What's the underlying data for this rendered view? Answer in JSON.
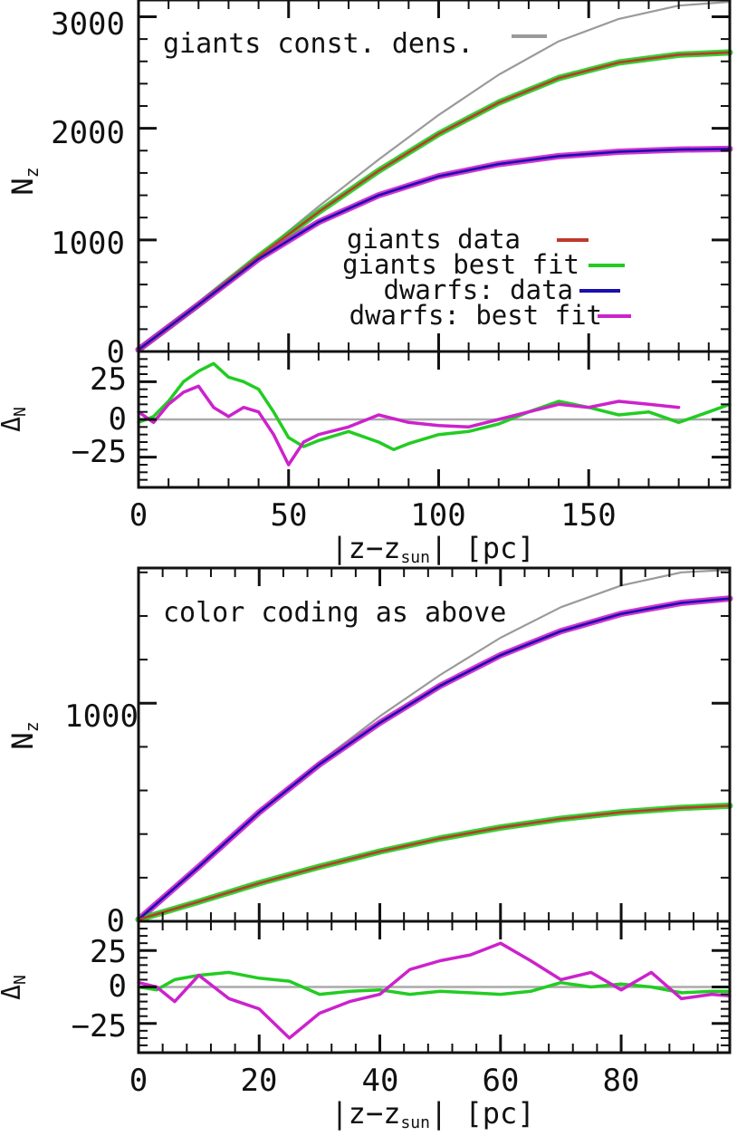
{
  "chart_data": [
    {
      "type": "line",
      "panel": "top",
      "xlim": [
        0,
        197
      ],
      "ylim": [
        0,
        3150
      ],
      "xticks": [
        0,
        50,
        100,
        150
      ],
      "yticks": [
        0,
        1000,
        2000,
        3000
      ],
      "xtick_labels": [
        "0",
        "50",
        "100",
        "150"
      ],
      "ytick_labels": [
        "0",
        "1000",
        "2000",
        "3000"
      ],
      "xlabel": "|z−z",
      "xlabel_sub": "sun",
      "xlabel_tail": "| [pc]",
      "ylabel": "N",
      "ylabel_sub": "z",
      "annotation": "giants const. dens.",
      "legend": [
        {
          "label": "giants data",
          "color": "#c0392b"
        },
        {
          "label": "giants best fit",
          "color": "#22cc22"
        },
        {
          "label": "dwarfs: data",
          "color": "#1a10b0"
        },
        {
          "label": "dwarfs: best fit",
          "color": "#cc22cc"
        }
      ],
      "legend_position": "center-right",
      "series": [
        {
          "name": "giants const. dens.",
          "color": "#9a9a9a",
          "x": [
            0,
            20,
            40,
            60,
            80,
            100,
            120,
            140,
            160,
            180,
            197
          ],
          "y": [
            0,
            420,
            860,
            1300,
            1720,
            2120,
            2480,
            2780,
            2980,
            3100,
            3140
          ]
        },
        {
          "name": "giants data",
          "color": "#c0392b",
          "x": [
            0,
            20,
            40,
            60,
            80,
            100,
            120,
            140,
            160,
            180,
            197
          ],
          "y": [
            0,
            420,
            850,
            1250,
            1620,
            1950,
            2230,
            2450,
            2590,
            2660,
            2680
          ]
        },
        {
          "name": "giants best fit",
          "color": "#22cc22",
          "x": [
            0,
            20,
            40,
            60,
            80,
            100,
            120,
            140,
            160,
            180,
            197
          ],
          "y": [
            0,
            420,
            850,
            1250,
            1620,
            1950,
            2230,
            2450,
            2590,
            2660,
            2680
          ]
        },
        {
          "name": "dwarfs: data",
          "color": "#1a10b0",
          "x": [
            0,
            20,
            40,
            60,
            80,
            100,
            120,
            140,
            160,
            180,
            197
          ],
          "y": [
            0,
            420,
            830,
            1160,
            1400,
            1570,
            1680,
            1750,
            1790,
            1810,
            1815
          ]
        },
        {
          "name": "dwarfs: best fit",
          "color": "#cc22cc",
          "x": [
            0,
            20,
            40,
            60,
            80,
            100,
            120,
            140,
            160,
            180,
            197
          ],
          "y": [
            0,
            420,
            830,
            1160,
            1400,
            1570,
            1680,
            1750,
            1790,
            1810,
            1815
          ]
        }
      ]
    },
    {
      "type": "line",
      "panel": "top-residual",
      "xlim": [
        0,
        197
      ],
      "ylim": [
        -45,
        45
      ],
      "yticks": [
        -25,
        0,
        25
      ],
      "ytick_labels": [
        "−25",
        "0",
        "25"
      ],
      "ylabel": "Δ",
      "ylabel_sub": "N",
      "series": [
        {
          "name": "giants residual",
          "color": "#22cc22",
          "x": [
            0,
            5,
            10,
            15,
            20,
            25,
            30,
            35,
            40,
            45,
            50,
            55,
            60,
            70,
            80,
            85,
            90,
            100,
            110,
            120,
            130,
            140,
            150,
            160,
            170,
            180,
            190,
            197
          ],
          "y": [
            -2,
            2,
            12,
            25,
            32,
            37,
            28,
            25,
            20,
            5,
            -12,
            -18,
            -14,
            -8,
            -15,
            -20,
            -16,
            -10,
            -8,
            -3,
            5,
            12,
            8,
            3,
            5,
            -2,
            5,
            10
          ]
        },
        {
          "name": "dwarfs residual",
          "color": "#cc22cc",
          "x": [
            0,
            5,
            10,
            15,
            20,
            25,
            30,
            35,
            40,
            45,
            50,
            55,
            60,
            70,
            80,
            90,
            100,
            110,
            120,
            130,
            140,
            150,
            160,
            170,
            180
          ],
          "y": [
            5,
            -2,
            10,
            18,
            22,
            8,
            2,
            8,
            5,
            -10,
            -30,
            -15,
            -10,
            -5,
            3,
            -2,
            -4,
            -5,
            0,
            5,
            10,
            8,
            12,
            10,
            8
          ]
        }
      ]
    },
    {
      "type": "line",
      "panel": "bottom",
      "xlim": [
        0,
        98
      ],
      "ylim": [
        0,
        1620
      ],
      "xticks": [
        0,
        20,
        40,
        60,
        80
      ],
      "yticks": [
        0,
        1000
      ],
      "xtick_labels": [
        "0",
        "20",
        "40",
        "60",
        "80"
      ],
      "ytick_labels": [
        "0",
        "1000"
      ],
      "xlabel": "|z−z",
      "xlabel_sub": "sun",
      "xlabel_tail": "| [pc]",
      "ylabel": "N",
      "ylabel_sub": "z",
      "annotation": "color coding as above",
      "series": [
        {
          "name": "giants const. dens.",
          "color": "#9a9a9a",
          "x": [
            0,
            10,
            20,
            30,
            40,
            50,
            60,
            70,
            80,
            90,
            98
          ],
          "y": [
            0,
            250,
            500,
            730,
            940,
            1130,
            1300,
            1440,
            1540,
            1600,
            1620
          ]
        },
        {
          "name": "dwarfs: data",
          "color": "#1a10b0",
          "x": [
            0,
            10,
            20,
            30,
            40,
            50,
            60,
            70,
            80,
            90,
            98
          ],
          "y": [
            0,
            250,
            500,
            720,
            910,
            1080,
            1220,
            1330,
            1410,
            1460,
            1480
          ]
        },
        {
          "name": "dwarfs: best fit",
          "color": "#cc22cc",
          "x": [
            0,
            10,
            20,
            30,
            40,
            50,
            60,
            70,
            80,
            90,
            98
          ],
          "y": [
            0,
            250,
            500,
            720,
            910,
            1080,
            1220,
            1330,
            1410,
            1460,
            1480
          ]
        },
        {
          "name": "giants data",
          "color": "#c0392b",
          "x": [
            0,
            10,
            20,
            30,
            40,
            50,
            60,
            70,
            80,
            90,
            98
          ],
          "y": [
            0,
            90,
            175,
            250,
            320,
            380,
            430,
            470,
            500,
            520,
            530
          ]
        },
        {
          "name": "giants best fit",
          "color": "#22cc22",
          "x": [
            0,
            10,
            20,
            30,
            40,
            50,
            60,
            70,
            80,
            90,
            98
          ],
          "y": [
            0,
            90,
            175,
            250,
            320,
            380,
            430,
            470,
            500,
            520,
            530
          ]
        }
      ]
    },
    {
      "type": "line",
      "panel": "bottom-residual",
      "xlim": [
        0,
        98
      ],
      "ylim": [
        -45,
        45
      ],
      "yticks": [
        -25,
        0,
        25
      ],
      "ytick_labels": [
        "−25",
        "0",
        "25"
      ],
      "ylabel": "Δ",
      "ylabel_sub": "N",
      "series": [
        {
          "name": "giants residual",
          "color": "#22cc22",
          "x": [
            0,
            3,
            6,
            10,
            15,
            20,
            25,
            30,
            35,
            40,
            45,
            50,
            55,
            60,
            65,
            70,
            75,
            80,
            85,
            90,
            95,
            98
          ],
          "y": [
            0,
            -2,
            5,
            8,
            10,
            6,
            4,
            -5,
            -3,
            -2,
            -5,
            -3,
            -4,
            -5,
            -3,
            3,
            0,
            2,
            0,
            -4,
            -3,
            -3
          ]
        },
        {
          "name": "dwarfs residual",
          "color": "#cc22cc",
          "x": [
            0,
            3,
            6,
            10,
            15,
            20,
            25,
            30,
            35,
            40,
            45,
            50,
            55,
            60,
            65,
            70,
            75,
            80,
            85,
            90,
            95,
            98
          ],
          "y": [
            3,
            0,
            -10,
            8,
            -8,
            -15,
            -35,
            -18,
            -10,
            -5,
            12,
            18,
            22,
            30,
            18,
            5,
            10,
            -2,
            10,
            -8,
            -5,
            -6
          ]
        }
      ]
    }
  ]
}
